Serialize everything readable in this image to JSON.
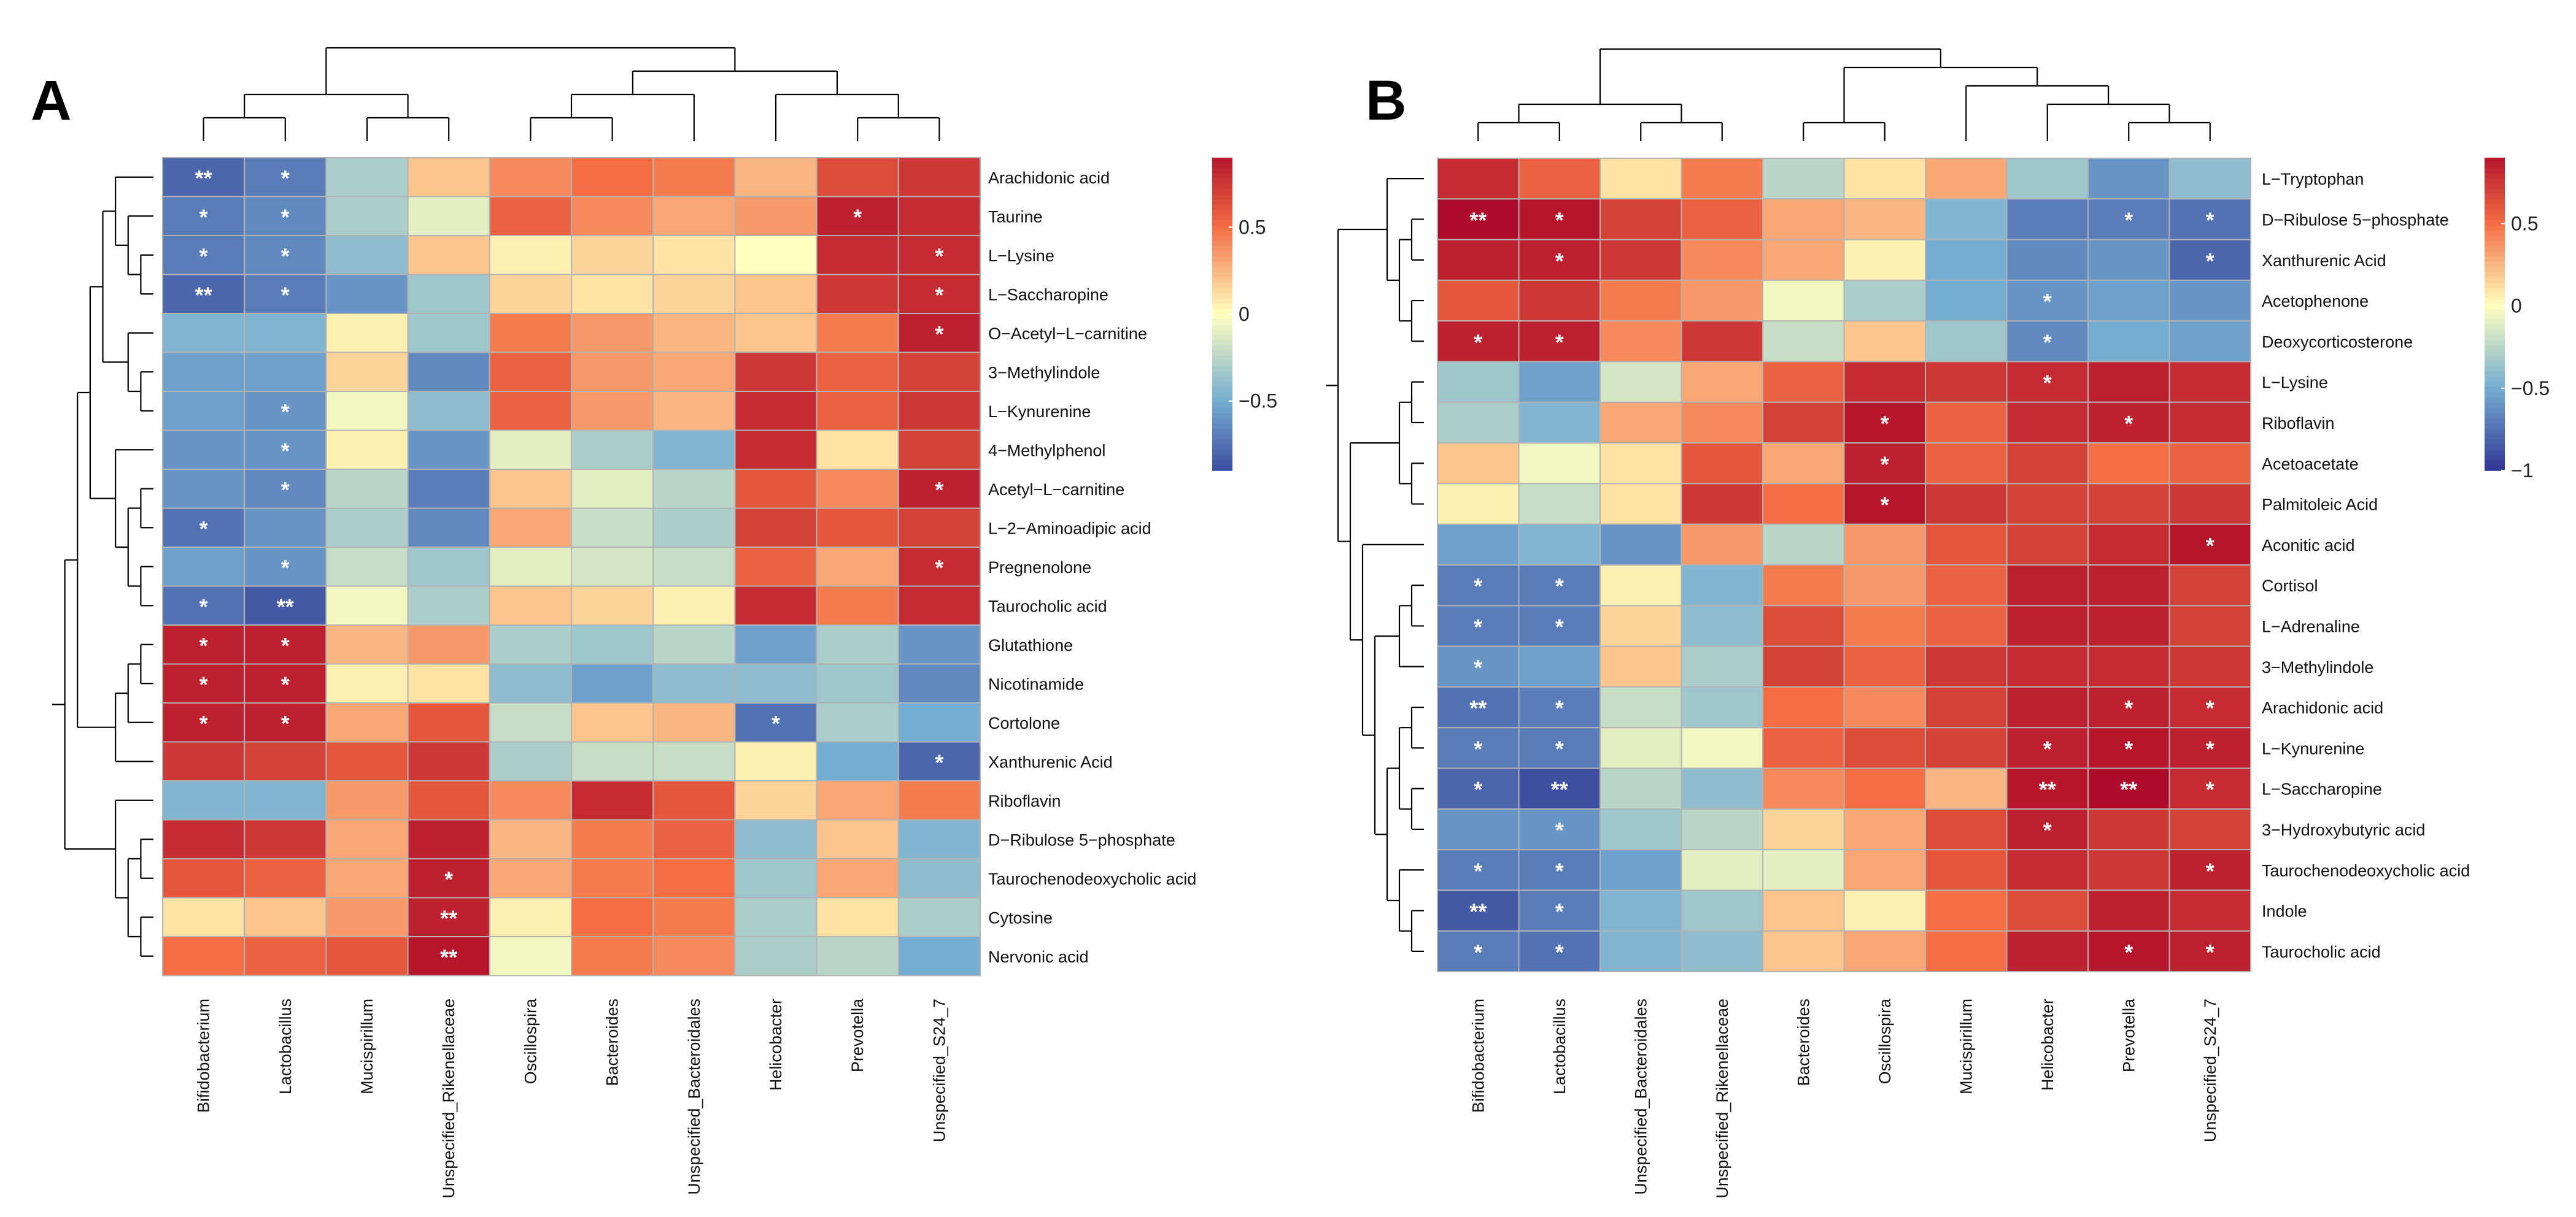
{
  "figure": {
    "colors": {
      "low": "#313695",
      "mid_low": "#74add1",
      "mid": "#ffffbf",
      "mid_high": "#f46d43",
      "high": "#a50026",
      "grid": "#b3b3b3",
      "line": "#000000",
      "star": "#ffffff"
    }
  },
  "chart_data": [
    {
      "type": "heatmap",
      "panel_label": "A",
      "rows": [
        "Arachidonic acid",
        "Taurine",
        "L−Lysine",
        "L−Saccharopine",
        "O−Acetyl−L−carnitine",
        "3−Methylindole",
        "L−Kynurenine",
        "4−Methylphenol",
        "Acetyl−L−carnitine",
        "L−2−Aminoadipic acid",
        "Pregnenolone",
        "Taurocholic acid",
        "Glutathione",
        "Nicotinamide",
        "Cortolone",
        "Xanthurenic Acid",
        "Riboflavin",
        "D−Ribulose 5−phosphate",
        "Taurochenodeoxycholic acid",
        "Cytosine",
        "Nervonic acid"
      ],
      "columns": [
        "Bifidobacterium",
        "Lactobacillus",
        "Mucispirillum",
        "Unspecified_Rikenellaceae",
        "Oscillospira",
        "Bacteroides",
        "Unspecified_Bacteroidales",
        "Helicobacter",
        "Prevotella",
        "Unspecified_S24_7"
      ],
      "values": [
        [
          -0.8,
          -0.7,
          -0.3,
          0.2,
          0.4,
          0.5,
          0.45,
          0.25,
          0.65,
          0.75
        ],
        [
          -0.7,
          -0.65,
          -0.3,
          -0.1,
          0.55,
          0.4,
          0.3,
          0.35,
          0.85,
          0.8
        ],
        [
          -0.7,
          -0.65,
          -0.4,
          0.2,
          0.05,
          0.15,
          0.1,
          0.0,
          0.8,
          0.8
        ],
        [
          -0.8,
          -0.7,
          -0.6,
          -0.35,
          0.15,
          0.1,
          0.15,
          0.2,
          0.75,
          0.8
        ],
        [
          -0.45,
          -0.45,
          0.05,
          -0.35,
          0.45,
          0.35,
          0.25,
          0.2,
          0.45,
          0.85
        ],
        [
          -0.55,
          -0.55,
          0.15,
          -0.65,
          0.55,
          0.35,
          0.3,
          0.75,
          0.55,
          0.7
        ],
        [
          -0.55,
          -0.6,
          -0.05,
          -0.4,
          0.55,
          0.35,
          0.25,
          0.8,
          0.55,
          0.75
        ],
        [
          -0.6,
          -0.6,
          0.05,
          -0.6,
          -0.1,
          -0.3,
          -0.45,
          0.8,
          0.1,
          0.7
        ],
        [
          -0.6,
          -0.65,
          -0.25,
          -0.7,
          0.2,
          -0.1,
          -0.25,
          0.6,
          0.4,
          0.85
        ],
        [
          -0.75,
          -0.6,
          -0.3,
          -0.65,
          0.3,
          -0.2,
          -0.3,
          0.7,
          0.6,
          0.7
        ],
        [
          -0.55,
          -0.6,
          -0.2,
          -0.35,
          -0.1,
          -0.15,
          -0.2,
          0.55,
          0.3,
          0.8
        ],
        [
          -0.75,
          -0.85,
          -0.05,
          -0.3,
          0.2,
          0.15,
          0.05,
          0.8,
          0.45,
          0.8
        ],
        [
          0.85,
          0.85,
          0.25,
          0.35,
          -0.3,
          -0.35,
          -0.25,
          -0.55,
          -0.3,
          -0.6
        ],
        [
          0.85,
          0.85,
          0.05,
          0.1,
          -0.4,
          -0.55,
          -0.4,
          -0.4,
          -0.35,
          -0.65
        ],
        [
          0.85,
          0.85,
          0.3,
          0.6,
          -0.2,
          0.2,
          0.25,
          -0.75,
          -0.3,
          -0.5
        ],
        [
          0.75,
          0.7,
          0.6,
          0.75,
          -0.3,
          -0.2,
          -0.2,
          0.05,
          -0.5,
          -0.8
        ],
        [
          -0.45,
          -0.45,
          0.35,
          0.6,
          0.4,
          0.8,
          0.6,
          0.15,
          0.3,
          0.45
        ],
        [
          0.8,
          0.75,
          0.3,
          0.85,
          0.25,
          0.45,
          0.55,
          -0.4,
          0.2,
          -0.45
        ],
        [
          0.6,
          0.55,
          0.3,
          0.85,
          0.3,
          0.45,
          0.5,
          -0.35,
          0.3,
          -0.4
        ],
        [
          0.1,
          0.2,
          0.35,
          0.85,
          0.05,
          0.5,
          0.45,
          -0.3,
          0.1,
          -0.3
        ],
        [
          0.5,
          0.55,
          0.6,
          0.9,
          -0.05,
          0.45,
          0.4,
          -0.3,
          -0.25,
          -0.5
        ]
      ],
      "significance": [
        [
          "**",
          "*",
          "",
          "",
          "",
          "",
          "",
          "",
          "",
          ""
        ],
        [
          "*",
          "*",
          "",
          "",
          "",
          "",
          "",
          "",
          "*",
          ""
        ],
        [
          "*",
          "*",
          "",
          "",
          "",
          "",
          "",
          "",
          "",
          "*"
        ],
        [
          "**",
          "*",
          "",
          "",
          "",
          "",
          "",
          "",
          "",
          "*"
        ],
        [
          "",
          "",
          "",
          "",
          "",
          "",
          "",
          "",
          "",
          "*"
        ],
        [
          "",
          "",
          "",
          "",
          "",
          "",
          "",
          "",
          "",
          ""
        ],
        [
          "",
          "*",
          "",
          "",
          "",
          "",
          "",
          "",
          "",
          ""
        ],
        [
          "",
          "*",
          "",
          "",
          "",
          "",
          "",
          "",
          "",
          ""
        ],
        [
          "",
          "*",
          "",
          "",
          "",
          "",
          "",
          "",
          "",
          "*"
        ],
        [
          "*",
          "",
          "",
          "",
          "",
          "",
          "",
          "",
          "",
          ""
        ],
        [
          "",
          "*",
          "",
          "",
          "",
          "",
          "",
          "",
          "",
          "*"
        ],
        [
          "*",
          "**",
          "",
          "",
          "",
          "",
          "",
          "",
          "",
          ""
        ],
        [
          "*",
          "*",
          "",
          "",
          "",
          "",
          "",
          "",
          "",
          ""
        ],
        [
          "*",
          "*",
          "",
          "",
          "",
          "",
          "",
          "",
          "",
          ""
        ],
        [
          "*",
          "*",
          "",
          "",
          "",
          "",
          "",
          "*",
          "",
          ""
        ],
        [
          "",
          "",
          "",
          "",
          "",
          "",
          "",
          "",
          "",
          "*"
        ],
        [
          "",
          "",
          "",
          "",
          "",
          "",
          "",
          "",
          "",
          ""
        ],
        [
          "",
          "",
          "",
          "",
          "",
          "",
          "",
          "",
          "",
          ""
        ],
        [
          "",
          "",
          "",
          "*",
          "",
          "",
          "",
          "",
          "",
          ""
        ],
        [
          "",
          "",
          "",
          "**",
          "",
          "",
          "",
          "",
          "",
          ""
        ],
        [
          "",
          "",
          "",
          "**",
          "",
          "",
          "",
          "",
          "",
          ""
        ]
      ],
      "col_tree": [
        [
          [
            0,
            1
          ],
          [
            2,
            3
          ]
        ],
        [
          [
            [
              4,
              5
            ],
            6
          ],
          [
            7,
            [
              8,
              9
            ]
          ]
        ]
      ],
      "row_tree": [
        [
          [
            [
              [
                [
                  0,
                  [
                    1,
                    [
                      2,
                      3
                    ]
                  ]
                ],
                [
                  4,
                  [
                    5,
                    6
                  ]
                ]
              ],
              [
                7,
                [
                  [
                    8,
                    9
                  ],
                  [
                    10,
                    11
                  ]
                ]
              ]
            ],
            [
              [
                [
                  12,
                  13
                ],
                14
              ],
              15
            ]
          ],
          [
            16,
            [
              [
                17,
                18
              ],
              [
                19,
                20
              ]
            ]
          ]
        ]
      ],
      "legend": {
        "ticks": [
          0.5,
          0,
          -0.5
        ],
        "tick_labels": [
          "0.5",
          "0",
          "−0.5"
        ],
        "range": [
          -0.9,
          0.9
        ]
      }
    },
    {
      "type": "heatmap",
      "panel_label": "B",
      "rows": [
        "L−Tryptophan",
        "D−Ribulose 5−phosphate",
        "Xanthurenic Acid",
        "Acetophenone",
        "Deoxycorticosterone",
        "L−Lysine",
        "Riboflavin",
        "Acetoacetate",
        "Palmitoleic Acid",
        "Aconitic acid",
        "Cortisol",
        "L−Adrenaline",
        "3−Methylindole",
        "Arachidonic acid",
        "L−Kynurenine",
        "L−Saccharopine",
        "3−Hydroxybutyric acid",
        "Taurochenodeoxycholic acid",
        "Indole",
        "Taurocholic acid"
      ],
      "columns": [
        "Bifidobacterium",
        "Lactobacillus",
        "Unspecified_Bacteroidales",
        "Unspecified_Rikenellaceae",
        "Bacteroides",
        "Oscillospira",
        "Mucispirillum",
        "Helicobacter",
        "Prevotella",
        "Unspecified_S24_7"
      ],
      "values": [
        [
          0.8,
          0.55,
          0.1,
          0.45,
          -0.25,
          0.1,
          0.3,
          -0.35,
          -0.6,
          -0.4
        ],
        [
          0.95,
          0.9,
          0.7,
          0.55,
          0.3,
          0.25,
          -0.45,
          -0.7,
          -0.7,
          -0.75
        ],
        [
          0.85,
          0.85,
          0.75,
          0.4,
          0.3,
          0.05,
          -0.5,
          -0.65,
          -0.6,
          -0.8
        ],
        [
          0.6,
          0.75,
          0.45,
          0.35,
          -0.05,
          -0.3,
          -0.5,
          -0.6,
          -0.55,
          -0.6
        ],
        [
          0.85,
          0.85,
          0.4,
          0.75,
          -0.2,
          0.2,
          -0.35,
          -0.65,
          -0.5,
          -0.55
        ],
        [
          -0.35,
          -0.55,
          -0.15,
          0.3,
          0.55,
          0.8,
          0.75,
          0.8,
          0.85,
          0.8
        ],
        [
          -0.3,
          -0.45,
          0.3,
          0.4,
          0.7,
          0.9,
          0.55,
          0.8,
          0.85,
          0.8
        ],
        [
          0.2,
          -0.05,
          0.1,
          0.6,
          0.3,
          0.85,
          0.55,
          0.7,
          0.5,
          0.55
        ],
        [
          0.05,
          -0.2,
          0.1,
          0.75,
          0.5,
          0.9,
          0.75,
          0.7,
          0.7,
          0.75
        ],
        [
          -0.55,
          -0.45,
          -0.6,
          0.35,
          -0.25,
          0.35,
          0.6,
          0.7,
          0.8,
          0.9
        ],
        [
          -0.7,
          -0.7,
          0.05,
          -0.45,
          0.45,
          0.35,
          0.55,
          0.85,
          0.85,
          0.7
        ],
        [
          -0.7,
          -0.7,
          0.15,
          -0.4,
          0.65,
          0.45,
          0.55,
          0.85,
          0.85,
          0.7
        ],
        [
          -0.6,
          -0.55,
          0.2,
          -0.3,
          0.7,
          0.55,
          0.75,
          0.8,
          0.8,
          0.75
        ],
        [
          -0.75,
          -0.7,
          -0.2,
          -0.35,
          0.5,
          0.4,
          0.7,
          0.85,
          0.85,
          0.8
        ],
        [
          -0.7,
          -0.7,
          -0.1,
          -0.05,
          0.55,
          0.65,
          0.7,
          0.85,
          0.9,
          0.85
        ],
        [
          -0.8,
          -0.9,
          -0.25,
          -0.4,
          0.4,
          0.5,
          0.25,
          0.9,
          0.95,
          0.8
        ],
        [
          -0.6,
          -0.6,
          -0.35,
          -0.25,
          0.15,
          0.3,
          0.65,
          0.85,
          0.75,
          0.7
        ],
        [
          -0.7,
          -0.7,
          -0.55,
          -0.1,
          -0.1,
          0.3,
          0.6,
          0.8,
          0.75,
          0.85
        ],
        [
          -0.85,
          -0.7,
          -0.45,
          -0.35,
          0.2,
          0.05,
          0.5,
          0.65,
          0.85,
          0.8
        ],
        [
          -0.7,
          -0.75,
          -0.45,
          -0.4,
          0.2,
          0.3,
          0.5,
          0.85,
          0.9,
          0.85
        ]
      ],
      "significance": [
        [
          "",
          "",
          "",
          "",
          "",
          "",
          "",
          "",
          "",
          ""
        ],
        [
          "**",
          "*",
          "",
          "",
          "",
          "",
          "",
          "",
          "*",
          "*"
        ],
        [
          "",
          "*",
          "",
          "",
          "",
          "",
          "",
          "",
          "",
          "*"
        ],
        [
          "",
          "",
          "",
          "",
          "",
          "",
          "",
          "*",
          "",
          ""
        ],
        [
          "*",
          "*",
          "",
          "",
          "",
          "",
          "",
          "*",
          "",
          ""
        ],
        [
          "",
          "",
          "",
          "",
          "",
          "",
          "",
          "*",
          "",
          ""
        ],
        [
          "",
          "",
          "",
          "",
          "",
          "*",
          "",
          "",
          "*",
          ""
        ],
        [
          "",
          "",
          "",
          "",
          "",
          "*",
          "",
          "",
          "",
          ""
        ],
        [
          "",
          "",
          "",
          "",
          "",
          "*",
          "",
          "",
          "",
          ""
        ],
        [
          "",
          "",
          "",
          "",
          "",
          "",
          "",
          "",
          "",
          "*"
        ],
        [
          "*",
          "*",
          "",
          "",
          "",
          "",
          "",
          "",
          "",
          ""
        ],
        [
          "*",
          "*",
          "",
          "",
          "",
          "",
          "",
          "",
          "",
          ""
        ],
        [
          "*",
          "",
          "",
          "",
          "",
          "",
          "",
          "",
          "",
          ""
        ],
        [
          "**",
          "*",
          "",
          "",
          "",
          "",
          "",
          "",
          "*",
          "*"
        ],
        [
          "*",
          "*",
          "",
          "",
          "",
          "",
          "",
          "*",
          "*",
          "*"
        ],
        [
          "*",
          "**",
          "",
          "",
          "",
          "",
          "",
          "**",
          "**",
          "*"
        ],
        [
          "",
          "*",
          "",
          "",
          "",
          "",
          "",
          "*",
          "",
          ""
        ],
        [
          "*",
          "*",
          "",
          "",
          "",
          "",
          "",
          "",
          "",
          "*"
        ],
        [
          "**",
          "*",
          "",
          "",
          "",
          "",
          "",
          "",
          "",
          ""
        ],
        [
          "*",
          "*",
          "",
          "",
          "",
          "",
          "",
          "",
          "*",
          "*"
        ]
      ],
      "col_tree": [
        [
          [
            0,
            1
          ],
          [
            2,
            3
          ]
        ],
        [
          [
            4,
            5
          ],
          [
            6,
            [
              7,
              [
                8,
                9
              ]
            ]
          ]
        ]
      ],
      "row_tree": [
        [
          [
            0,
            [
              [
                1,
                2
              ],
              [
                3,
                4
              ]
            ]
          ],
          [
            [
              [
                5,
                6
              ],
              [
                7,
                8
              ]
            ],
            [
              9,
              [
                [
                  [
                    10,
                    11
                  ],
                  12
                ],
                [
                  [
                    [
                      13,
                      14
                    ],
                    [
                      15,
                      16
                    ]
                  ],
                  [
                    17,
                    [
                      18,
                      19
                    ]
                  ]
                ]
              ]
            ]
          ]
        ]
      ],
      "legend": {
        "ticks": [
          0.5,
          0,
          -0.5,
          -1
        ],
        "tick_labels": [
          "0.5",
          "0",
          "−0.5",
          "−1"
        ],
        "range": [
          -1,
          0.9
        ]
      }
    }
  ]
}
